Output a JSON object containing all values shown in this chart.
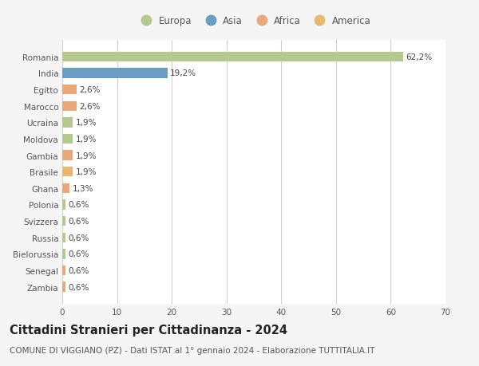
{
  "categories": [
    "Romania",
    "India",
    "Egitto",
    "Marocco",
    "Ucraina",
    "Moldova",
    "Gambia",
    "Brasile",
    "Ghana",
    "Polonia",
    "Svizzera",
    "Russia",
    "Bielorussia",
    "Senegal",
    "Zambia"
  ],
  "values": [
    62.2,
    19.2,
    2.6,
    2.6,
    1.9,
    1.9,
    1.9,
    1.9,
    1.3,
    0.6,
    0.6,
    0.6,
    0.6,
    0.6,
    0.6
  ],
  "labels": [
    "62,2%",
    "19,2%",
    "2,6%",
    "2,6%",
    "1,9%",
    "1,9%",
    "1,9%",
    "1,9%",
    "1,3%",
    "0,6%",
    "0,6%",
    "0,6%",
    "0,6%",
    "0,6%",
    "0,6%"
  ],
  "colors": [
    "#b5c98e",
    "#6b9dc2",
    "#e8a87c",
    "#e8a87c",
    "#b5c98e",
    "#b5c98e",
    "#e8a87c",
    "#e8b86d",
    "#e8a87c",
    "#b5c98e",
    "#b5c98e",
    "#b5c98e",
    "#b5c98e",
    "#e8a87c",
    "#e8a87c"
  ],
  "legend_labels": [
    "Europa",
    "Asia",
    "Africa",
    "America"
  ],
  "legend_colors": [
    "#b5c98e",
    "#6b9dc2",
    "#e8a87c",
    "#e8b86d"
  ],
  "xlim": [
    0,
    70
  ],
  "xticks": [
    0,
    10,
    20,
    30,
    40,
    50,
    60,
    70
  ],
  "title": "Cittadini Stranieri per Cittadinanza - 2024",
  "subtitle": "COMUNE DI VIGGIANO (PZ) - Dati ISTAT al 1° gennaio 2024 - Elaborazione TUTTITALIA.IT",
  "background_color": "#f5f5f5",
  "bar_background": "#ffffff",
  "grid_color": "#d0d0d0",
  "title_fontsize": 10.5,
  "subtitle_fontsize": 7.5,
  "tick_fontsize": 7.5,
  "label_fontsize": 7.5,
  "legend_fontsize": 8.5
}
